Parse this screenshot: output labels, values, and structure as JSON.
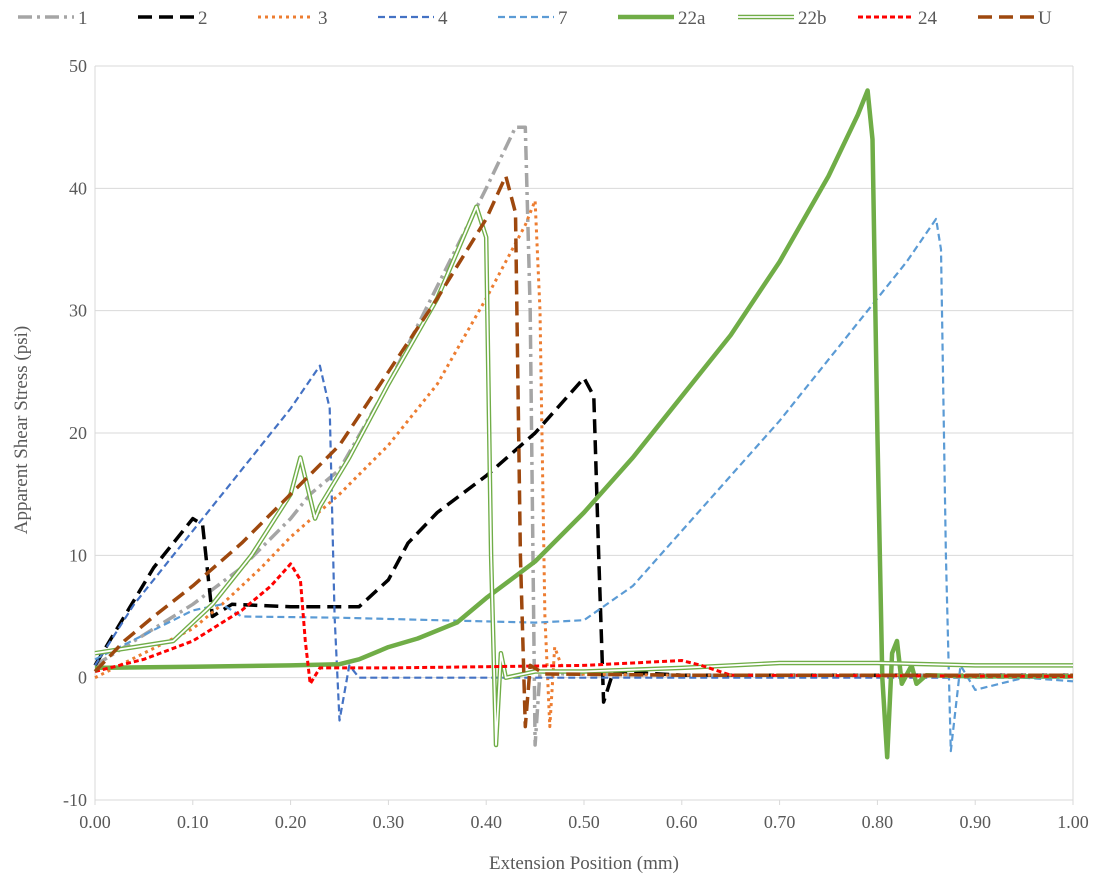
{
  "chart_data": {
    "type": "line",
    "title": "",
    "xlabel": "Extension Position (mm)",
    "ylabel": "Apparent Shear Stress (psi)",
    "xlim": [
      0,
      1
    ],
    "ylim": [
      -10,
      50
    ],
    "x_ticks": [
      "0.00",
      "0.10",
      "0.20",
      "0.30",
      "0.40",
      "0.50",
      "0.60",
      "0.70",
      "0.80",
      "0.90",
      "1.00"
    ],
    "y_ticks": [
      "-10",
      "0",
      "10",
      "20",
      "30",
      "40",
      "50"
    ],
    "grid": "horizontal",
    "legend_position": "top",
    "series": [
      {
        "name": "1",
        "color": "#a5a5a5",
        "style": "dash-dot",
        "points": [
          [
            0,
            1
          ],
          [
            0.02,
            2
          ],
          [
            0.05,
            3.5
          ],
          [
            0.1,
            6
          ],
          [
            0.15,
            9
          ],
          [
            0.2,
            13
          ],
          [
            0.22,
            15
          ],
          [
            0.25,
            17
          ],
          [
            0.3,
            24
          ],
          [
            0.35,
            32
          ],
          [
            0.4,
            40
          ],
          [
            0.43,
            45
          ],
          [
            0.44,
            45
          ],
          [
            0.445,
            30
          ],
          [
            0.45,
            -5.5
          ],
          [
            0.455,
            0.5
          ],
          [
            0.48,
            0.3
          ],
          [
            0.6,
            0.2
          ],
          [
            1,
            0.2
          ]
        ]
      },
      {
        "name": "2",
        "color": "#000000",
        "style": "long-dash",
        "points": [
          [
            0,
            1
          ],
          [
            0.03,
            5
          ],
          [
            0.06,
            9
          ],
          [
            0.09,
            12
          ],
          [
            0.1,
            13
          ],
          [
            0.11,
            12.5
          ],
          [
            0.12,
            5
          ],
          [
            0.13,
            5.5
          ],
          [
            0.14,
            6
          ],
          [
            0.2,
            5.8
          ],
          [
            0.27,
            5.8
          ],
          [
            0.3,
            8
          ],
          [
            0.32,
            11
          ],
          [
            0.35,
            13.5
          ],
          [
            0.4,
            16.5
          ],
          [
            0.45,
            20
          ],
          [
            0.5,
            24.5
          ],
          [
            0.51,
            23
          ],
          [
            0.515,
            10
          ],
          [
            0.52,
            -2
          ],
          [
            0.53,
            0.5
          ],
          [
            0.6,
            0.2
          ],
          [
            1,
            0.2
          ]
        ]
      },
      {
        "name": "3",
        "color": "#ed7d31",
        "style": "dot",
        "points": [
          [
            0,
            0
          ],
          [
            0.05,
            2
          ],
          [
            0.1,
            4
          ],
          [
            0.13,
            6
          ],
          [
            0.17,
            9
          ],
          [
            0.2,
            11.5
          ],
          [
            0.25,
            15
          ],
          [
            0.3,
            19
          ],
          [
            0.35,
            24
          ],
          [
            0.4,
            31
          ],
          [
            0.44,
            37
          ],
          [
            0.45,
            39
          ],
          [
            0.455,
            30
          ],
          [
            0.46,
            5
          ],
          [
            0.465,
            -4
          ],
          [
            0.47,
            2.5
          ],
          [
            0.48,
            0.3
          ],
          [
            0.6,
            0.2
          ],
          [
            1,
            0.2
          ]
        ]
      },
      {
        "name": "4",
        "color": "#4472c4",
        "style": "dash",
        "points": [
          [
            0,
            1
          ],
          [
            0.04,
            6
          ],
          [
            0.08,
            10
          ],
          [
            0.12,
            14
          ],
          [
            0.16,
            18
          ],
          [
            0.2,
            22
          ],
          [
            0.23,
            25.5
          ],
          [
            0.24,
            22
          ],
          [
            0.245,
            5
          ],
          [
            0.25,
            -3.5
          ],
          [
            0.26,
            1
          ],
          [
            0.27,
            0
          ],
          [
            0.3,
            0
          ],
          [
            0.4,
            0
          ],
          [
            0.6,
            0
          ],
          [
            0.8,
            0
          ],
          [
            1,
            0
          ]
        ]
      },
      {
        "name": "7",
        "color": "#5b9bd5",
        "style": "dash",
        "points": [
          [
            0,
            1.5
          ],
          [
            0.05,
            3.5
          ],
          [
            0.1,
            5.5
          ],
          [
            0.13,
            6
          ],
          [
            0.15,
            5
          ],
          [
            0.25,
            4.9
          ],
          [
            0.35,
            4.7
          ],
          [
            0.45,
            4.5
          ],
          [
            0.5,
            4.7
          ],
          [
            0.55,
            7.5
          ],
          [
            0.6,
            12
          ],
          [
            0.65,
            16.5
          ],
          [
            0.7,
            21
          ],
          [
            0.75,
            26
          ],
          [
            0.8,
            31
          ],
          [
            0.83,
            34
          ],
          [
            0.86,
            37.5
          ],
          [
            0.865,
            35
          ],
          [
            0.87,
            10
          ],
          [
            0.875,
            -6
          ],
          [
            0.885,
            1
          ],
          [
            0.9,
            -1
          ],
          [
            0.95,
            0
          ],
          [
            1,
            -0.3
          ]
        ]
      },
      {
        "name": "22a",
        "color": "#70ad47",
        "style": "thick",
        "points": [
          [
            0,
            0.8
          ],
          [
            0.1,
            0.9
          ],
          [
            0.2,
            1
          ],
          [
            0.25,
            1.1
          ],
          [
            0.27,
            1.5
          ],
          [
            0.3,
            2.5
          ],
          [
            0.33,
            3.2
          ],
          [
            0.37,
            4.5
          ],
          [
            0.4,
            6.5
          ],
          [
            0.45,
            9.5
          ],
          [
            0.5,
            13.5
          ],
          [
            0.55,
            18
          ],
          [
            0.6,
            23
          ],
          [
            0.65,
            28
          ],
          [
            0.7,
            34
          ],
          [
            0.75,
            41
          ],
          [
            0.78,
            46
          ],
          [
            0.79,
            48
          ],
          [
            0.795,
            44
          ],
          [
            0.8,
            20
          ],
          [
            0.805,
            0
          ],
          [
            0.81,
            -6.5
          ],
          [
            0.815,
            2
          ],
          [
            0.82,
            3
          ],
          [
            0.825,
            -0.5
          ],
          [
            0.835,
            1
          ],
          [
            0.84,
            -0.5
          ],
          [
            0.85,
            0.2
          ],
          [
            0.9,
            0.1
          ],
          [
            1,
            0.1
          ]
        ]
      },
      {
        "name": "22b",
        "color": "#70ad47",
        "style": "double",
        "points": [
          [
            0,
            2
          ],
          [
            0.04,
            2.5
          ],
          [
            0.08,
            3
          ],
          [
            0.12,
            6
          ],
          [
            0.16,
            10
          ],
          [
            0.2,
            15
          ],
          [
            0.21,
            18
          ],
          [
            0.225,
            13
          ],
          [
            0.23,
            14
          ],
          [
            0.26,
            18
          ],
          [
            0.3,
            24
          ],
          [
            0.35,
            31
          ],
          [
            0.39,
            38.5
          ],
          [
            0.4,
            36
          ],
          [
            0.405,
            10
          ],
          [
            0.41,
            -5.5
          ],
          [
            0.415,
            2
          ],
          [
            0.42,
            0
          ],
          [
            0.45,
            0.5
          ],
          [
            0.5,
            0.5
          ],
          [
            0.6,
            0.8
          ],
          [
            0.7,
            1.2
          ],
          [
            0.8,
            1.2
          ],
          [
            0.9,
            1
          ],
          [
            1,
            1
          ]
        ]
      },
      {
        "name": "24",
        "color": "#ff0000",
        "style": "fine-dash",
        "points": [
          [
            0,
            0.5
          ],
          [
            0.05,
            1.5
          ],
          [
            0.1,
            3
          ],
          [
            0.15,
            5.5
          ],
          [
            0.18,
            7.5
          ],
          [
            0.2,
            9.3
          ],
          [
            0.21,
            8
          ],
          [
            0.215,
            3
          ],
          [
            0.22,
            -0.5
          ],
          [
            0.23,
            0.8
          ],
          [
            0.3,
            0.8
          ],
          [
            0.4,
            0.9
          ],
          [
            0.5,
            1
          ],
          [
            0.6,
            1.4
          ],
          [
            0.62,
            1
          ],
          [
            0.65,
            0.2
          ],
          [
            1,
            0.1
          ]
        ]
      },
      {
        "name": "U",
        "color": "#9e480e",
        "style": "long-dash",
        "points": [
          [
            0,
            0.5
          ],
          [
            0.03,
            3
          ],
          [
            0.06,
            5
          ],
          [
            0.1,
            7.5
          ],
          [
            0.15,
            11
          ],
          [
            0.2,
            15
          ],
          [
            0.25,
            19
          ],
          [
            0.3,
            25
          ],
          [
            0.35,
            31
          ],
          [
            0.4,
            37.5
          ],
          [
            0.42,
            41
          ],
          [
            0.43,
            38
          ],
          [
            0.435,
            10
          ],
          [
            0.44,
            -4
          ],
          [
            0.445,
            1
          ],
          [
            0.46,
            0.3
          ],
          [
            0.6,
            0.2
          ],
          [
            1,
            0.2
          ]
        ]
      }
    ]
  }
}
